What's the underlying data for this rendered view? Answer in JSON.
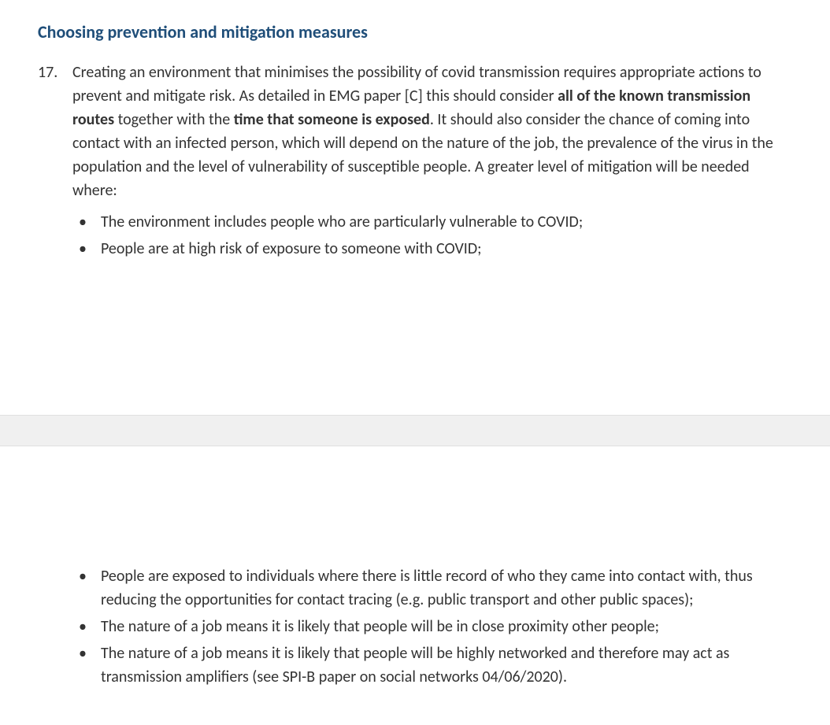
{
  "colors": {
    "heading": "#1f4e79",
    "body_text": "#333333",
    "page_break_bg": "#f0f0f0",
    "page_break_border": "#e0e0e0",
    "background": "#ffffff"
  },
  "typography": {
    "body_fontsize": 20,
    "heading_fontsize": 22,
    "line_height": 1.5,
    "font_family": "Calibri"
  },
  "heading": "Choosing prevention and mitigation measures",
  "item": {
    "number": "17.",
    "para_part1": "Creating an environment that minimises the possibility of covid transmission requires appropriate actions to prevent and mitigate risk. As detailed in EMG paper [C] this should consider ",
    "bold1": "all of the known transmission routes",
    "para_part2": " together with the ",
    "bold2": "time that someone is exposed",
    "para_part3": ". It should also consider the chance of coming into contact with an infected person, which will depend on the nature of the job, the prevalence of the virus in the population and the level of vulnerability of susceptible people. A greater level of mitigation will be needed where:",
    "bullets_page1": [
      "The environment includes people who are particularly vulnerable to COVID;",
      "People are at high risk of exposure to someone with COVID;"
    ],
    "bullets_page2": [
      "People are exposed to individuals where there is little record of who they came into contact with, thus reducing the opportunities for contact tracing (e.g. public transport and other public spaces);",
      "The nature of a job means it is likely that people will be in close proximity other people;",
      "The nature of a job means it is likely that people will be highly networked and therefore may act as transmission amplifiers (see SPI-B paper on social networks 04/06/2020)."
    ]
  }
}
